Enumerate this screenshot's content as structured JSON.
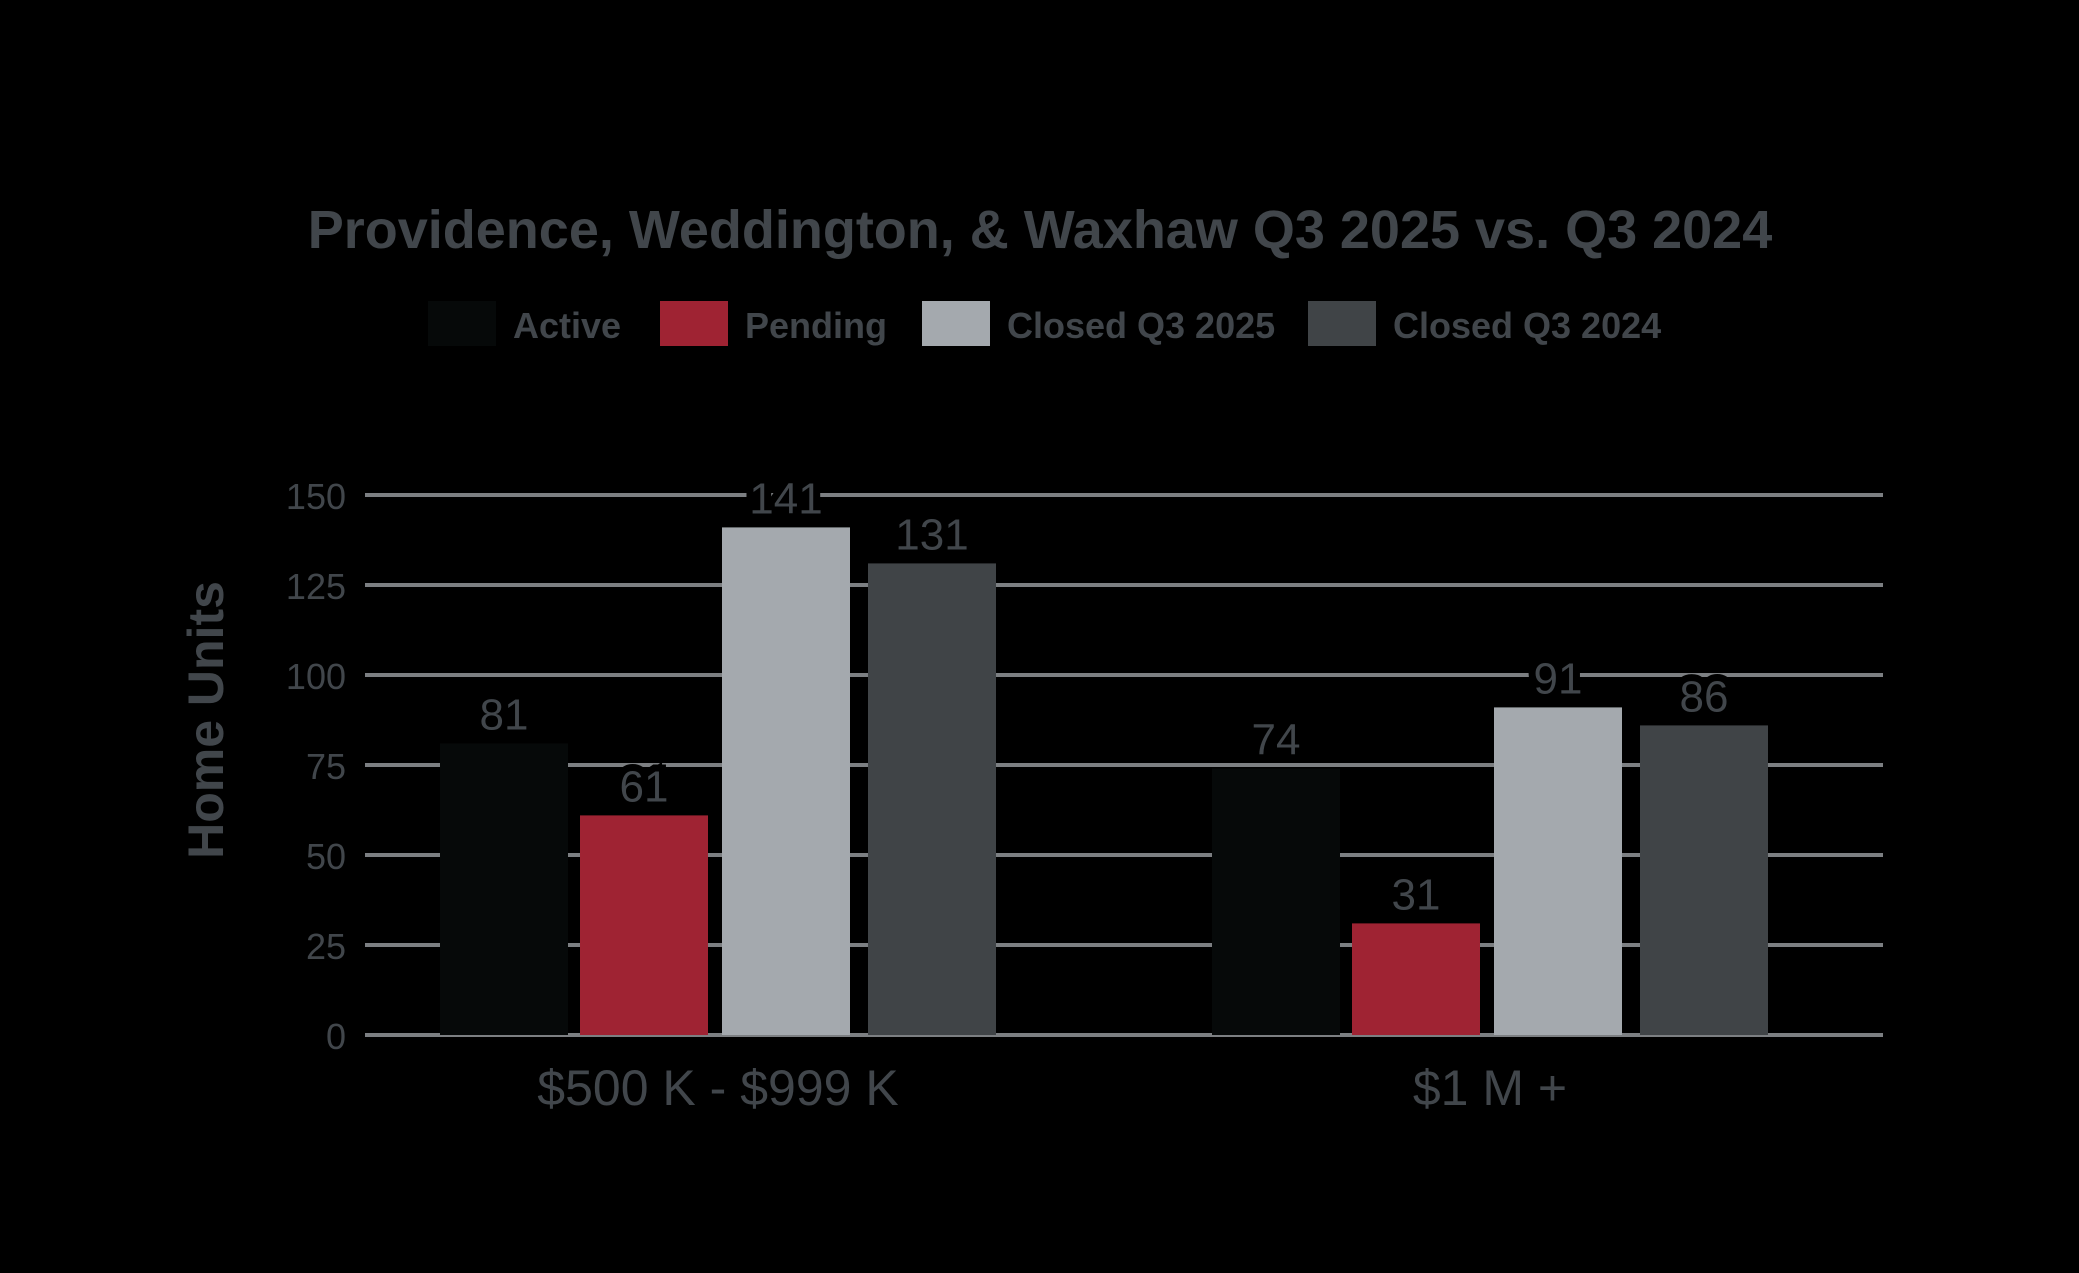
{
  "chart_data": {
    "type": "bar",
    "title": "Providence, Weddington, & Waxhaw Q3 2025 vs. Q3 2024",
    "ylabel": "Home Units",
    "xlabel": "",
    "categories": [
      "$500 K - $999 K",
      "$1 M +"
    ],
    "series": [
      {
        "name": "Active",
        "values": [
          81,
          74
        ],
        "color": "#060909"
      },
      {
        "name": "Pending",
        "values": [
          61,
          31
        ],
        "color": "#9f2333"
      },
      {
        "name": "Closed Q3 2025",
        "values": [
          141,
          91
        ],
        "color": "#a4a9ae"
      },
      {
        "name": "Closed Q3 2024",
        "values": [
          131,
          86
        ],
        "color": "#404447"
      }
    ],
    "ylim": [
      0,
      150
    ],
    "yticks": [
      0,
      25,
      50,
      75,
      100,
      125,
      150
    ],
    "grid": true,
    "legend": "top-center"
  },
  "colors": {
    "background": "#000000",
    "text": "#41464b",
    "gridline": "#7c7f82"
  }
}
